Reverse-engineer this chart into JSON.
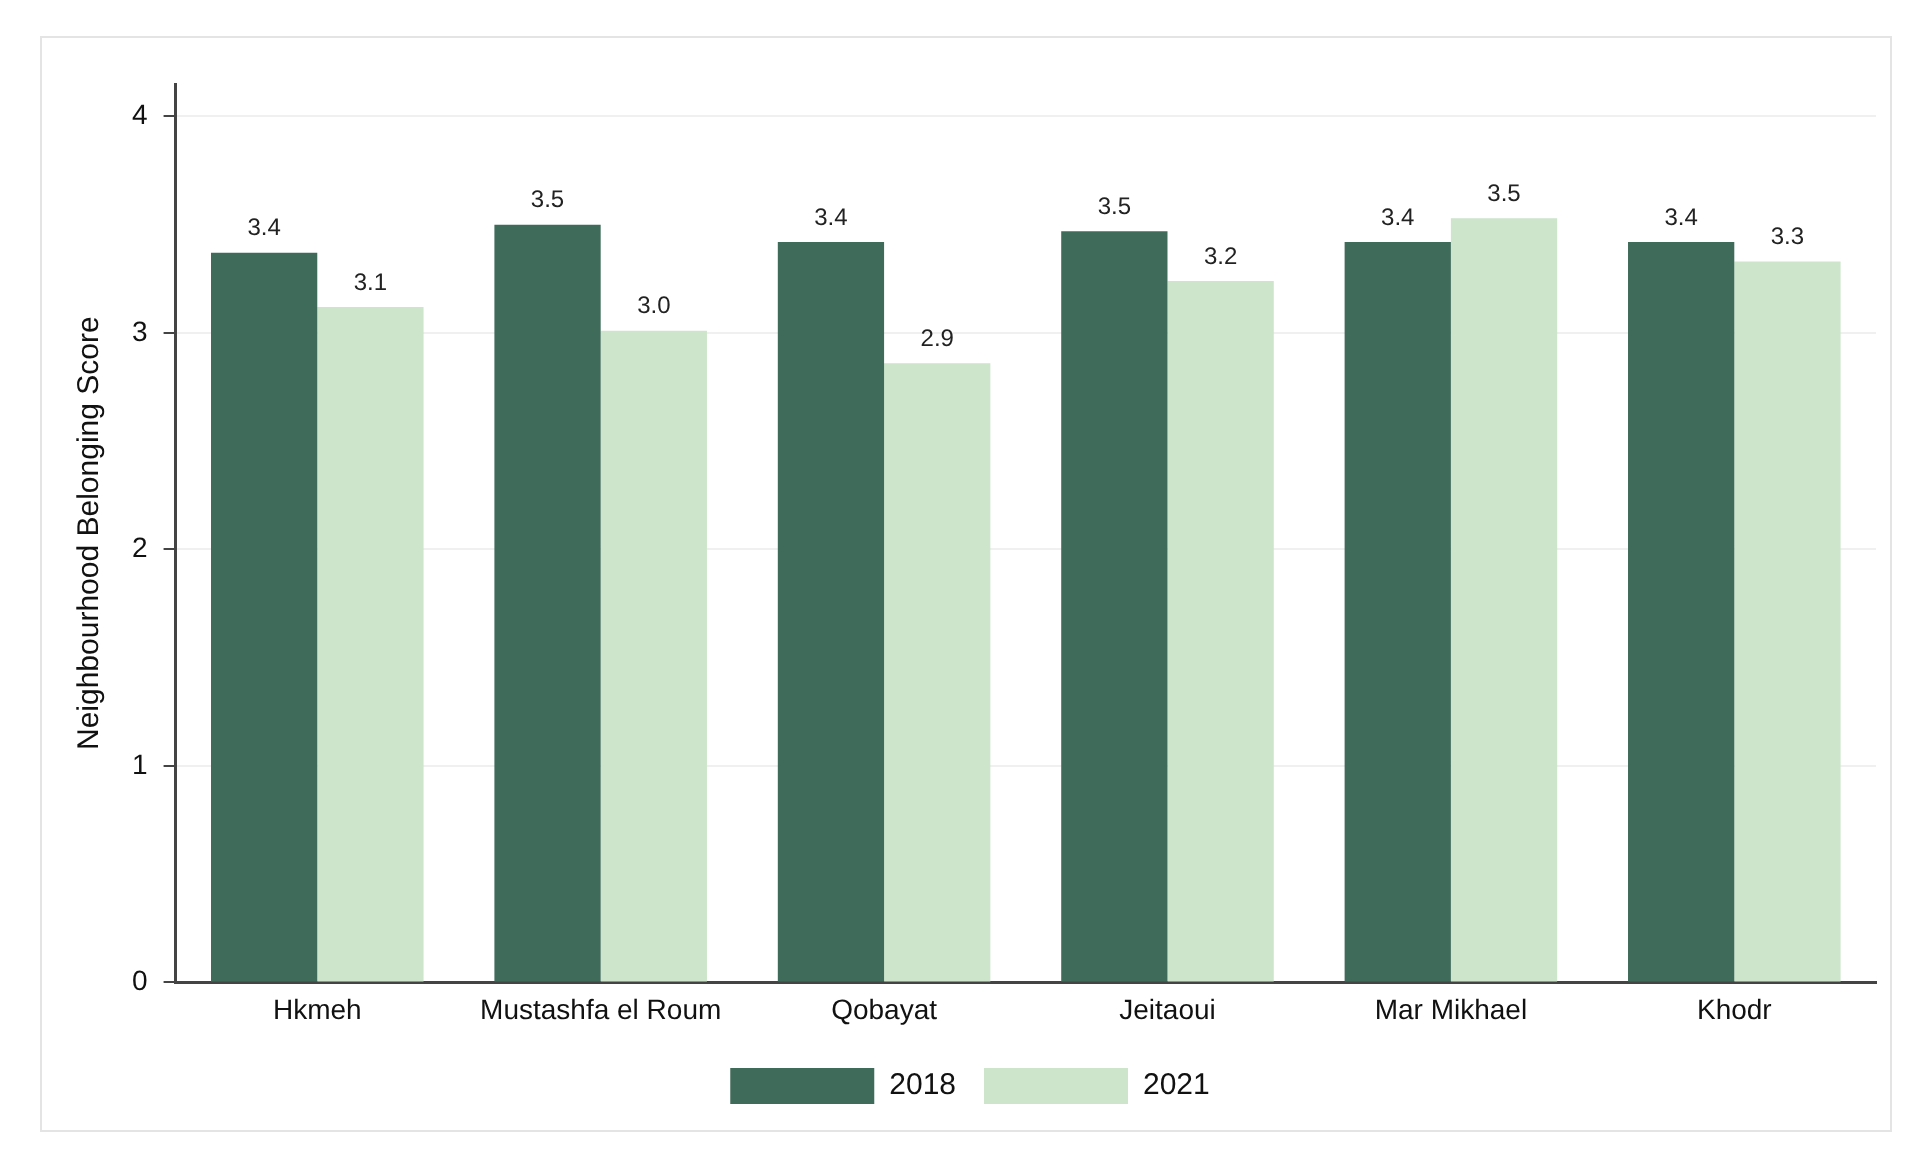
{
  "chart_data": {
    "type": "bar",
    "ylabel": "Neighbourhood Belonging Score",
    "categories": [
      "Hkmeh",
      "Mustashfa el Roum",
      "Qobayat",
      "Jeitaoui",
      "Mar Mikhael",
      "Khodr"
    ],
    "series": [
      {
        "name": "2018",
        "color": "#3f6b5a",
        "values": [
          3.37,
          3.5,
          3.42,
          3.47,
          3.42,
          3.42
        ],
        "value_labels": [
          "3.4",
          "3.5",
          "3.4",
          "3.5",
          "3.4",
          "3.4"
        ]
      },
      {
        "name": "2021",
        "color": "#cde5cb",
        "values": [
          3.12,
          3.01,
          2.86,
          3.24,
          3.53,
          3.33
        ],
        "value_labels": [
          "3.1",
          "3.0",
          "2.9",
          "3.2",
          "3.5",
          "3.3"
        ]
      }
    ],
    "ylim": [
      0,
      4.15
    ],
    "yticks": [
      0,
      1,
      2,
      3,
      4
    ],
    "grid": "y",
    "legend": "bottom"
  }
}
